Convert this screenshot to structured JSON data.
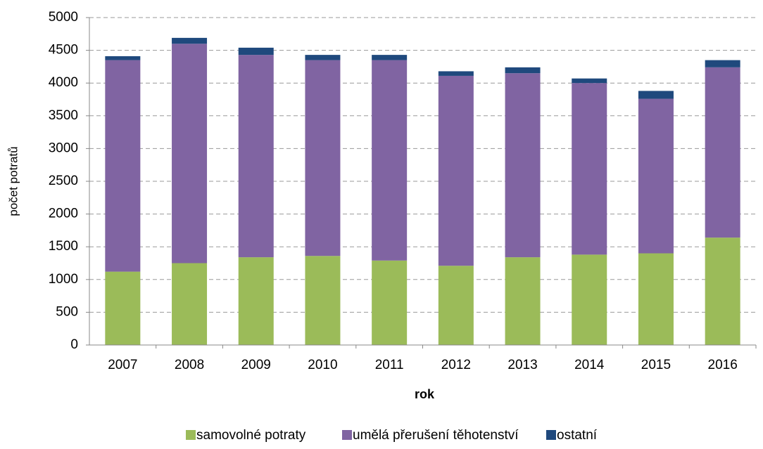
{
  "chart_data": {
    "type": "stacked_bar",
    "categories": [
      "2007",
      "2008",
      "2009",
      "2010",
      "2011",
      "2012",
      "2013",
      "2014",
      "2015",
      "2016"
    ],
    "series": [
      {
        "name": "samovolné potraty",
        "color": "#9bbb59",
        "values": [
          1120,
          1250,
          1340,
          1360,
          1290,
          1210,
          1340,
          1380,
          1400,
          1640
        ]
      },
      {
        "name": "umělá přerušení těhotenství",
        "color": "#8064a2",
        "values": [
          3230,
          3350,
          3090,
          2990,
          3060,
          2900,
          2810,
          2620,
          2360,
          2600
        ]
      },
      {
        "name": "ostatní",
        "color": "#1f497d",
        "values": [
          60,
          90,
          110,
          80,
          80,
          70,
          90,
          70,
          120,
          110
        ]
      }
    ],
    "x_label": "rok",
    "y_label": "počet potratů",
    "ylim": [
      0,
      5000
    ],
    "yticks": [
      0,
      500,
      1000,
      1500,
      2000,
      2500,
      3000,
      3500,
      4000,
      4500,
      5000
    ],
    "grid": true,
    "legend": "bottom"
  }
}
